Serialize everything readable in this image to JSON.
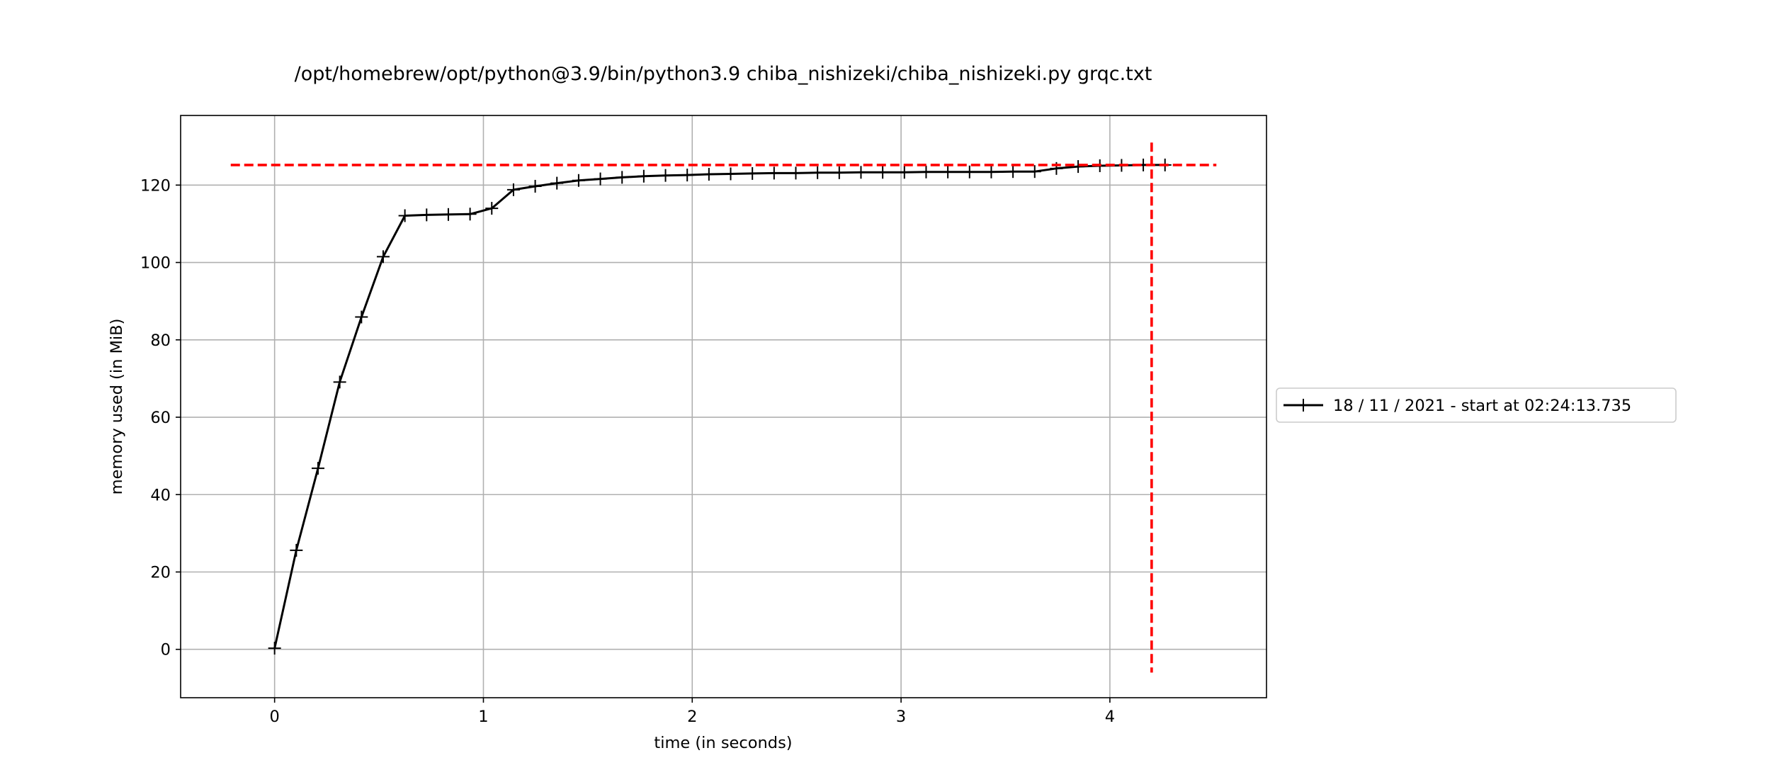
{
  "chart_data": {
    "type": "line",
    "title": "/opt/homebrew/opt/python@3.9/bin/python3.9 chiba_nishizeki/chiba_nishizeki.py grqc.txt",
    "xlabel": "time (in seconds)",
    "ylabel": "memory used (in MiB)",
    "xlim": [
      -0.45,
      4.75
    ],
    "ylim": [
      -12.5,
      138
    ],
    "x_ticks": [
      0,
      1,
      2,
      3,
      4
    ],
    "y_ticks": [
      0,
      20,
      40,
      60,
      80,
      100,
      120
    ],
    "grid": true,
    "legend_position": "outside-right",
    "series": [
      {
        "name": "18 / 11 / 2021 - start at 02:24:13.735",
        "color": "#000000",
        "marker": "plus",
        "x": [
          0,
          0.104,
          0.208,
          0.312,
          0.416,
          0.52,
          0.624,
          0.728,
          0.832,
          0.936,
          1.04,
          1.144,
          1.248,
          1.352,
          1.456,
          1.56,
          1.664,
          1.768,
          1.872,
          1.976,
          2.08,
          2.184,
          2.288,
          2.392,
          2.496,
          2.6,
          2.704,
          2.808,
          2.912,
          3.016,
          3.12,
          3.224,
          3.328,
          3.432,
          3.536,
          3.64,
          3.744,
          3.848,
          3.952,
          4.056,
          4.16,
          4.264
        ],
        "y": [
          0.3,
          25.6,
          46.8,
          69.1,
          85.9,
          101.5,
          112.1,
          112.3,
          112.4,
          112.5,
          114,
          118.8,
          119.7,
          120.5,
          121.2,
          121.6,
          122,
          122.3,
          122.5,
          122.6,
          122.8,
          122.9,
          123,
          123.1,
          123.1,
          123.2,
          123.2,
          123.3,
          123.3,
          123.3,
          123.4,
          123.4,
          123.4,
          123.4,
          123.5,
          123.5,
          124.3,
          124.8,
          125,
          125.1,
          125.2,
          125.2
        ]
      }
    ],
    "reference_lines": [
      {
        "orientation": "horizontal",
        "value": 125.2,
        "color": "#ff0000",
        "style": "dashed"
      },
      {
        "orientation": "vertical",
        "value": 4.2,
        "color": "#ff0000",
        "style": "dashed"
      }
    ]
  }
}
